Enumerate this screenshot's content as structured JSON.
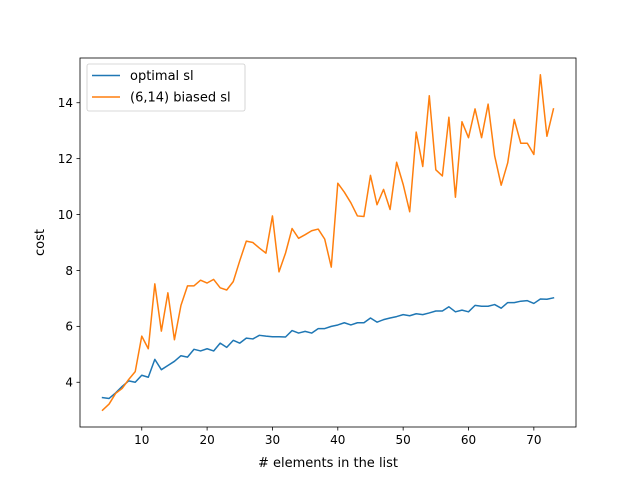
{
  "chart_data": {
    "type": "line",
    "title": "",
    "xlabel": "# elements in the list",
    "ylabel": "cost",
    "xlim": [
      0.55,
      76.45
    ],
    "ylim": [
      2.4,
      15.6
    ],
    "xticks": [
      10,
      20,
      30,
      40,
      50,
      60,
      70
    ],
    "yticks": [
      4,
      6,
      8,
      10,
      12,
      14
    ],
    "grid": false,
    "legend_position": "upper-left",
    "x": [
      4,
      5,
      6,
      7,
      8,
      9,
      10,
      11,
      12,
      13,
      14,
      15,
      16,
      17,
      18,
      19,
      20,
      21,
      22,
      23,
      24,
      25,
      26,
      27,
      28,
      29,
      30,
      31,
      32,
      33,
      34,
      35,
      36,
      37,
      38,
      39,
      40,
      41,
      42,
      43,
      44,
      45,
      46,
      47,
      48,
      49,
      50,
      51,
      52,
      53,
      54,
      55,
      56,
      57,
      58,
      59,
      60,
      61,
      62,
      63,
      64,
      65,
      66,
      67,
      68,
      69,
      70,
      71,
      72,
      73
    ],
    "series": [
      {
        "name": "optimal sl",
        "color": "#1f77b4",
        "values": [
          3.45,
          3.42,
          3.62,
          3.85,
          4.05,
          4.0,
          4.25,
          4.18,
          4.82,
          4.45,
          4.6,
          4.75,
          4.95,
          4.9,
          5.18,
          5.12,
          5.2,
          5.12,
          5.4,
          5.25,
          5.5,
          5.4,
          5.58,
          5.55,
          5.68,
          5.65,
          5.63,
          5.63,
          5.62,
          5.85,
          5.76,
          5.82,
          5.76,
          5.92,
          5.92,
          6.0,
          6.05,
          6.13,
          6.05,
          6.13,
          6.13,
          6.3,
          6.15,
          6.24,
          6.3,
          6.35,
          6.42,
          6.38,
          6.45,
          6.42,
          6.48,
          6.55,
          6.55,
          6.7,
          6.52,
          6.58,
          6.52,
          6.75,
          6.72,
          6.72,
          6.78,
          6.65,
          6.85,
          6.85,
          6.9,
          6.92,
          6.82,
          6.98,
          6.97,
          7.02
        ]
      },
      {
        "name": "(6,14) biased sl",
        "color": "#ff7f0e",
        "values": [
          3.0,
          3.22,
          3.6,
          3.78,
          4.1,
          4.38,
          5.65,
          5.2,
          7.52,
          5.83,
          7.2,
          5.52,
          6.75,
          7.45,
          7.45,
          7.65,
          7.55,
          7.68,
          7.38,
          7.3,
          7.6,
          8.35,
          9.05,
          9.0,
          8.8,
          8.62,
          9.95,
          7.95,
          8.62,
          9.5,
          9.15,
          9.28,
          9.42,
          9.48,
          9.12,
          8.12,
          11.12,
          10.8,
          10.42,
          9.95,
          9.93,
          11.4,
          10.35,
          10.9,
          10.18,
          11.87,
          11.08,
          10.1,
          12.95,
          11.72,
          14.25,
          11.6,
          11.38,
          13.48,
          10.62,
          13.32,
          12.75,
          13.78,
          12.75,
          13.95,
          12.1,
          11.05,
          11.85,
          13.4,
          12.55,
          12.55,
          12.15,
          15.0,
          12.8,
          13.78
        ]
      }
    ]
  }
}
